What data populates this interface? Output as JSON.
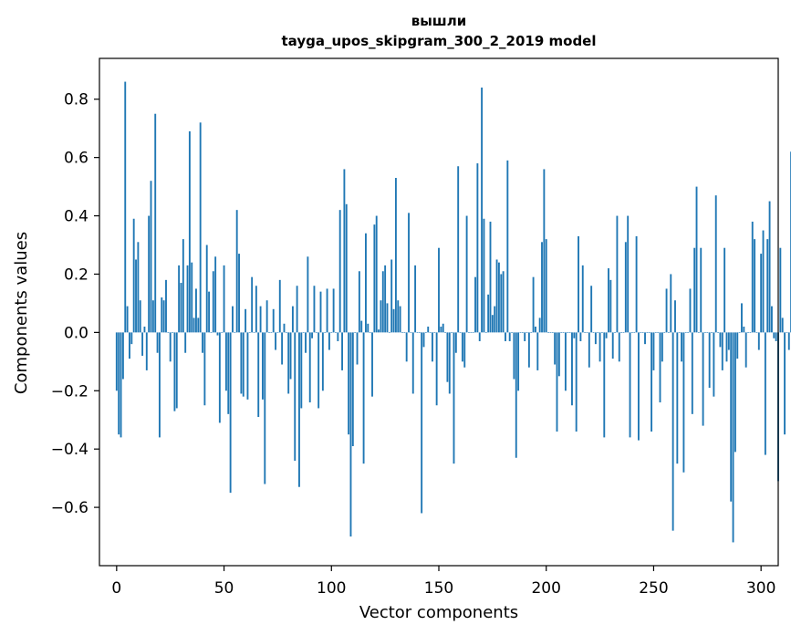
{
  "chart_data": {
    "type": "bar",
    "title": "вышли",
    "subtitle": "tayga_upos_skipgram_300_2_2019 model",
    "xlabel": "Vector components",
    "ylabel": "Components values",
    "xlim": [
      -8,
      308
    ],
    "ylim": [
      -0.8,
      0.94
    ],
    "xticks": [
      0,
      50,
      100,
      150,
      200,
      250,
      300
    ],
    "xtick_labels": [
      "0",
      "50",
      "100",
      "150",
      "200",
      "250",
      "300"
    ],
    "yticks": [
      -0.6,
      -0.4,
      -0.2,
      0.0,
      0.2,
      0.4,
      0.6,
      0.8
    ],
    "ytick_labels": [
      "−0.6",
      "−0.4",
      "−0.2",
      "0.0",
      "0.2",
      "0.4",
      "0.6",
      "0.8"
    ],
    "bar_color": "#1f77b4",
    "series": [
      {
        "name": "вышли",
        "values": [
          -0.2,
          -0.35,
          -0.36,
          -0.16,
          0.86,
          0.09,
          -0.09,
          -0.04,
          0.39,
          0.25,
          0.31,
          0.11,
          -0.08,
          0.02,
          -0.13,
          0.4,
          0.52,
          0.11,
          0.75,
          -0.07,
          -0.36,
          0.12,
          0.11,
          0.18,
          0.0,
          -0.1,
          0.0,
          -0.27,
          -0.26,
          0.23,
          0.17,
          0.32,
          -0.07,
          0.23,
          0.69,
          0.24,
          0.05,
          0.15,
          0.05,
          0.72,
          -0.07,
          -0.25,
          0.3,
          0.14,
          0.0,
          0.21,
          0.26,
          -0.01,
          -0.31,
          0.0,
          0.23,
          -0.2,
          -0.28,
          -0.55,
          0.09,
          0.0,
          0.42,
          0.27,
          -0.21,
          -0.22,
          0.08,
          -0.23,
          0.0,
          0.19,
          0.0,
          0.16,
          -0.29,
          0.09,
          -0.23,
          -0.52,
          0.11,
          0.0,
          0.0,
          0.08,
          -0.06,
          0.0,
          0.18,
          -0.11,
          0.03,
          0.0,
          -0.21,
          -0.16,
          0.09,
          -0.44,
          0.16,
          -0.53,
          -0.26,
          0.0,
          -0.07,
          0.26,
          -0.24,
          -0.02,
          0.16,
          0.0,
          -0.26,
          0.14,
          -0.2,
          0.0,
          0.15,
          -0.06,
          0.0,
          0.15,
          0.0,
          -0.03,
          0.42,
          -0.13,
          0.56,
          0.44,
          -0.35,
          -0.7,
          -0.39,
          0.0,
          -0.11,
          0.21,
          0.04,
          -0.45,
          0.34,
          0.03,
          0.0,
          -0.22,
          0.37,
          0.4,
          0.01,
          0.11,
          0.21,
          0.23,
          0.1,
          0.0,
          0.25,
          0.08,
          0.53,
          0.11,
          0.09,
          0.0,
          0.0,
          -0.1,
          0.41,
          0.0,
          -0.21,
          0.23,
          0.0,
          0.0,
          -0.62,
          -0.05,
          0.0,
          0.02,
          0.0,
          -0.1,
          0.0,
          -0.25,
          0.29,
          0.02,
          0.03,
          0.0,
          -0.17,
          -0.21,
          0.0,
          -0.45,
          -0.07,
          0.57,
          0.0,
          -0.1,
          -0.12,
          0.4,
          0.0,
          0.0,
          0.0,
          0.19,
          0.58,
          -0.03,
          0.84,
          0.39,
          0.0,
          0.13,
          0.38,
          0.06,
          0.09,
          0.25,
          0.24,
          0.2,
          0.21,
          -0.03,
          0.59,
          -0.03,
          0.0,
          -0.16,
          -0.43,
          -0.2,
          0.0,
          0.0,
          -0.03,
          0.0,
          -0.12,
          0.0,
          0.19,
          0.02,
          -0.13,
          0.05,
          0.31,
          0.56,
          0.32,
          0.0,
          0.0,
          0.0,
          -0.11,
          -0.34,
          -0.15,
          0.0,
          0.0,
          -0.2,
          0.0,
          0.0,
          -0.25,
          -0.02,
          -0.34,
          0.33,
          -0.03,
          0.23,
          0.0,
          0.0,
          -0.12,
          0.16,
          0.0,
          -0.04,
          0.0,
          -0.1,
          0.0,
          -0.36,
          -0.02,
          0.22,
          0.18,
          -0.09,
          0.0,
          0.4,
          -0.1,
          0.0,
          0.0,
          0.31,
          0.4,
          -0.36,
          0.0,
          0.0,
          0.33,
          -0.37,
          0.0,
          0.0,
          -0.04,
          0.0,
          0.0,
          -0.34,
          -0.13,
          0.0,
          0.0,
          -0.24,
          -0.1,
          0.0,
          0.15,
          0.0,
          0.2,
          -0.68,
          0.11,
          -0.45,
          0.0,
          -0.1,
          -0.48,
          0.0,
          0.0,
          0.15,
          -0.28,
          0.29,
          0.5,
          0.0,
          0.29,
          -0.32,
          0.0,
          0.0,
          -0.19,
          0.0,
          -0.22,
          0.47,
          0.0,
          -0.05,
          -0.13,
          0.29,
          -0.1,
          -0.06,
          -0.58,
          -0.72,
          -0.41,
          -0.09,
          0.0,
          0.1,
          0.02,
          -0.12,
          0.0,
          0.0,
          0.38,
          0.32,
          0.0,
          -0.06,
          0.27,
          0.35,
          -0.42,
          0.32,
          0.45,
          0.09,
          -0.02,
          -0.03,
          -0.51,
          0.29,
          0.05,
          -0.35,
          0.0,
          -0.06,
          0.62
        ]
      }
    ]
  }
}
